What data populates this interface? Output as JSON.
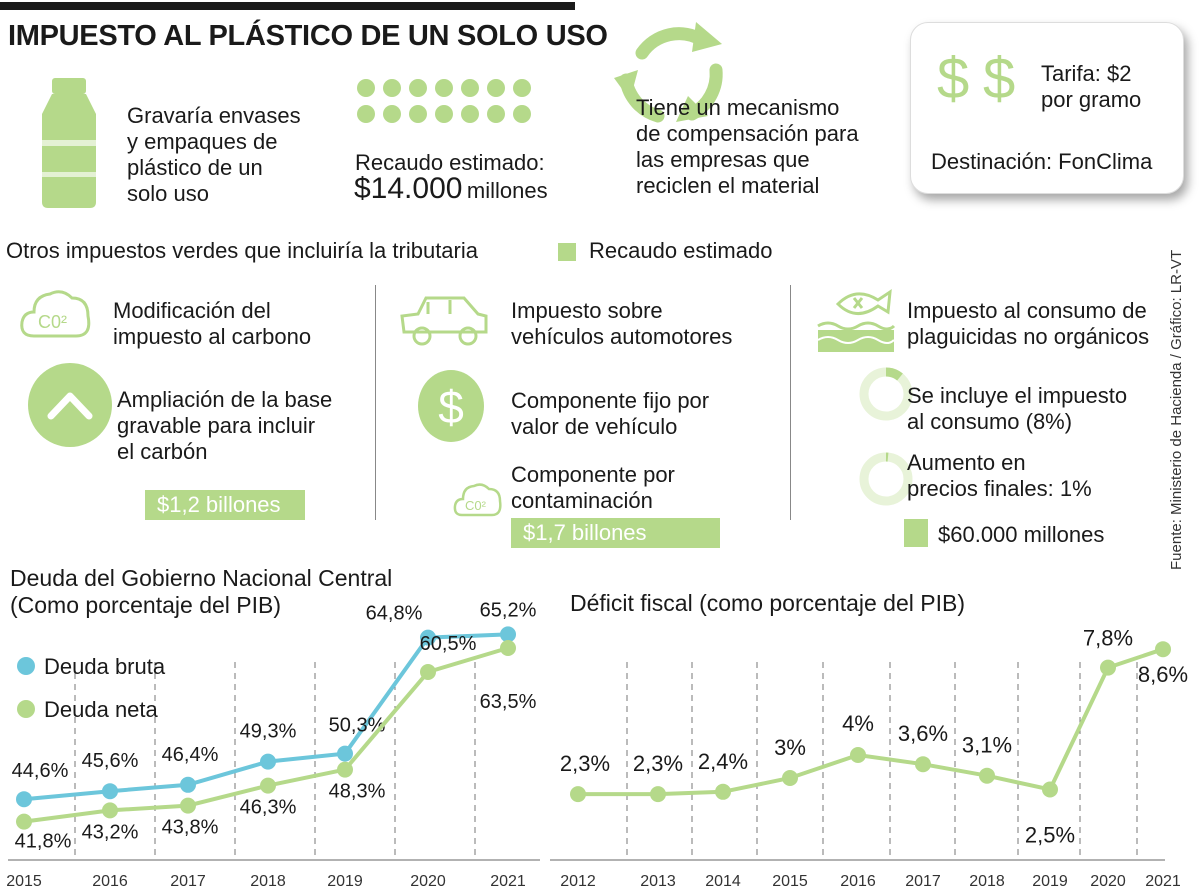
{
  "header": {
    "title": "IMPUESTO AL PLÁSTICO DE UN SOLO USO"
  },
  "plastic": {
    "description": "Gravaría envases\ny empaques de\nplástico de un\nsolo uso",
    "revenue_label": "Recaudo estimado:",
    "revenue_value": "$14.000",
    "revenue_unit": "millones",
    "compensation": "Tiene un mecanismo\nde compensación para\nlas empresas que\nreciclen el material",
    "rate_label": "Tarifa: $2\npor gramo",
    "destination": "Destinación: FonClima",
    "dollar_sign": "$"
  },
  "others": {
    "heading": "Otros impuestos verdes que incluiría la tributaria",
    "legend": "Recaudo estimado",
    "carbon": {
      "title": "Modificación del\nimpuesto al carbono",
      "detail": "Ampliación de la base\ngravable para incluir\nel carbón",
      "amount": "$1,2 billones",
      "icon_text": "C0²"
    },
    "vehicles": {
      "title": "Impuesto sobre\nvehículos automotores",
      "fixed": "Componente fijo por\nvalor de vehículo",
      "pollution": "Componente por\ncontaminación",
      "amount": "$1,7 billones",
      "dollar_sign": "$",
      "icon_text": "C0²"
    },
    "pesticides": {
      "title": "Impuesto al consumo de\nplaguicidas no orgánicos",
      "consumption": "Se incluye el impuesto\nal consumo (8%)",
      "prices": "Aumento en\nprecios finales: 1%",
      "amount": "$60.000 millones"
    }
  },
  "source": "Fuente: Ministerio de Hacienda / Gráfico: LR-VT",
  "chart_data": [
    {
      "type": "line",
      "title": "Deuda del Gobierno Nacional Central\n(Como porcentaje del PIB)",
      "categories": [
        "2015",
        "2016",
        "2017",
        "2018",
        "2019",
        "2020",
        "2021"
      ],
      "series": [
        {
          "name": "Deuda bruta",
          "color": "#6cc6db",
          "values": [
            44.6,
            45.6,
            46.4,
            49.3,
            50.3,
            64.8,
            65.2
          ],
          "labels": [
            "44,6%",
            "45,6%",
            "46,4%",
            "49,3%",
            "50,3%",
            "64,8%",
            "65,2%"
          ]
        },
        {
          "name": "Deuda neta",
          "color": "#b5d98a",
          "values": [
            41.8,
            43.2,
            43.8,
            46.3,
            48.3,
            60.5,
            63.5
          ],
          "labels": [
            "41,8%",
            "43,2%",
            "43,8%",
            "46,3%",
            "48,3%",
            "60,5%",
            "63,5%"
          ]
        }
      ],
      "ylim": [
        38,
        68
      ],
      "grid": "vertical dashed"
    },
    {
      "type": "line",
      "title": "Déficit fiscal  (como porcentaje del PIB)",
      "categories": [
        "2012",
        "2013",
        "2014",
        "2015",
        "2016",
        "2017",
        "2018",
        "2019",
        "2020",
        "2021"
      ],
      "series": [
        {
          "name": "Déficit fiscal",
          "color": "#b5d98a",
          "values": [
            2.3,
            2.3,
            2.4,
            3.0,
            4.0,
            3.6,
            3.1,
            2.5,
            7.8,
            8.6
          ],
          "labels": [
            "2,3%",
            "2,3%",
            "2,4%",
            "3%",
            "4%",
            "3,6%",
            "3,1%",
            "2,5%",
            "7,8%",
            "8,6%"
          ]
        }
      ],
      "ylim": [
        0,
        10
      ],
      "grid": "vertical dashed"
    }
  ]
}
